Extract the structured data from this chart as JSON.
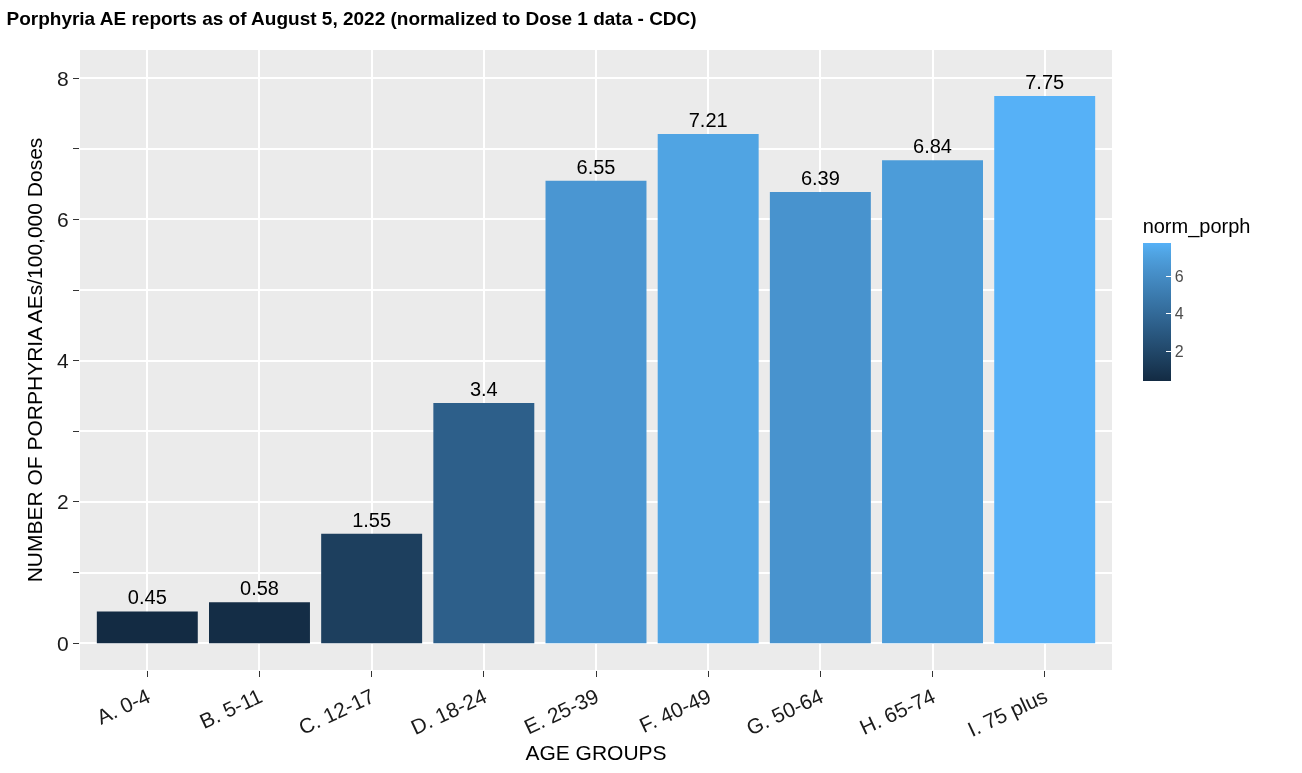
{
  "chart_data": {
    "type": "bar",
    "title": "Porphyria AE reports as of August 5, 2022 (normalized to Dose 1 data - CDC)",
    "xlabel": "AGE GROUPS",
    "ylabel": "NUMBER OF PORPHYRIA AEs/100,000 Doses",
    "clabel": "norm_porph",
    "categories": [
      "A. 0-4",
      "B. 5-11",
      "C. 12-17",
      "D. 18-24",
      "E. 25-39",
      "F. 40-49",
      "G. 50-64",
      "H. 65-74",
      "I. 75 plus"
    ],
    "values": [
      0.45,
      0.58,
      1.55,
      3.4,
      6.55,
      7.21,
      6.39,
      6.84,
      7.75
    ],
    "colors": [
      "#132b43",
      "#142d46",
      "#1d3f5e",
      "#2d5f8a",
      "#4a96d2",
      "#50a4e3",
      "#4893ce",
      "#4c9cd9",
      "#56b1f7"
    ],
    "clim": [
      0.45,
      7.75
    ],
    "cticks": [
      2,
      4,
      6
    ],
    "ylim": [
      -0.38,
      8.4
    ],
    "yticks": [
      0,
      {
        "value": 1,
        "label": null
      },
      2,
      {
        "value": 3,
        "label": null
      },
      4,
      {
        "value": 5,
        "label": null
      },
      6,
      {
        "value": 7,
        "label": null
      },
      8
    ],
    "grid": true,
    "data_labels": true
  }
}
